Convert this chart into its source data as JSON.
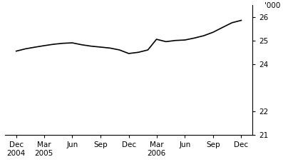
{
  "title": "",
  "ylabel": "'000",
  "x_labels": [
    "Dec\n2004",
    "Mar\n2005",
    "Jun",
    "Sep",
    "Dec",
    "Mar\n2006",
    "Jun",
    "Sep",
    "Dec"
  ],
  "x_positions": [
    0,
    3,
    6,
    9,
    12,
    15,
    18,
    21,
    24
  ],
  "y_values": [
    24.55,
    24.65,
    24.7,
    24.78,
    24.85,
    24.78,
    24.75,
    24.73,
    24.7,
    24.62,
    24.58,
    24.6,
    24.63,
    24.45,
    24.48,
    24.6,
    24.7,
    24.95,
    25.0,
    25.02,
    25.04,
    25.15,
    25.35,
    25.5,
    25.75,
    25.9,
    25.95,
    26.05,
    25.95,
    25.85
  ],
  "ylim": [
    21,
    26.5
  ],
  "yticks": [
    21,
    22,
    24,
    25,
    26
  ],
  "line_color": "#000000",
  "line_width": 1.2,
  "background_color": "#ffffff",
  "tick_label_fontsize": 7.5
}
